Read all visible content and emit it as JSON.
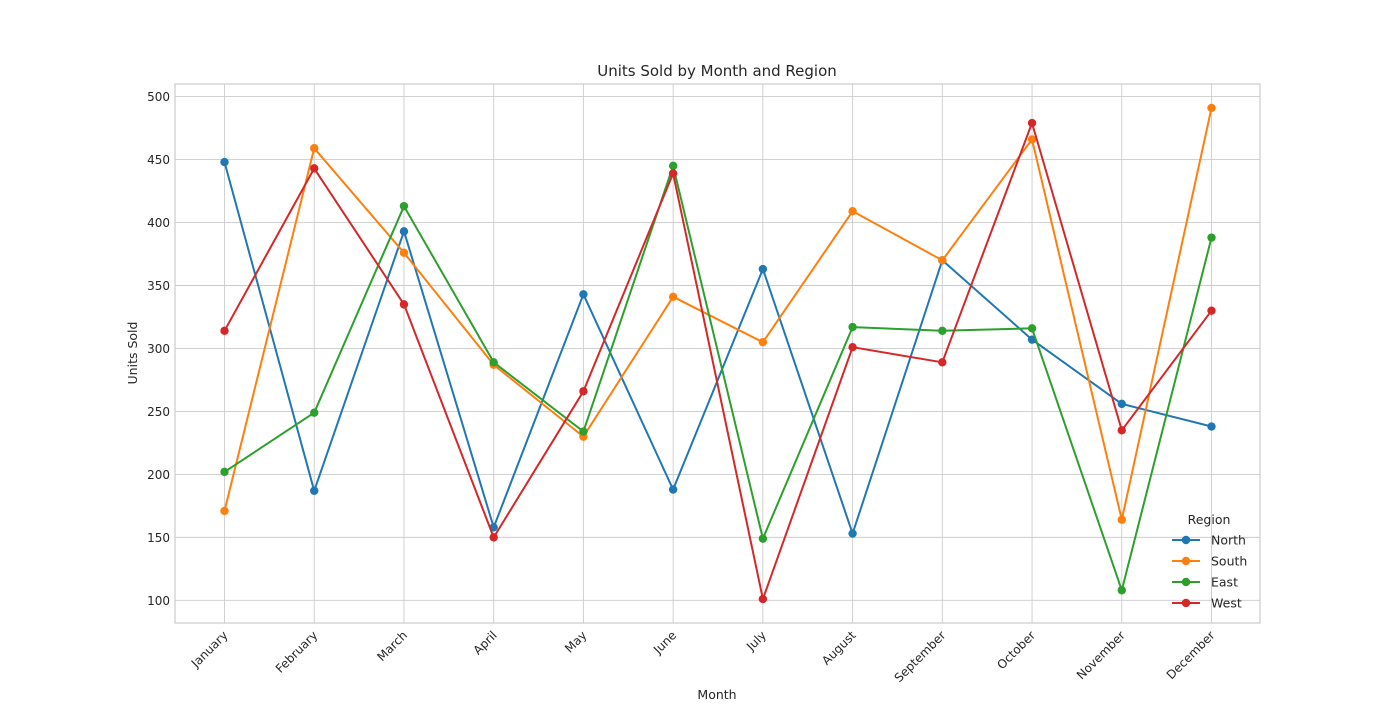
{
  "chart_data": {
    "type": "line",
    "title": "Units Sold by Month and Region",
    "xlabel": "Month",
    "ylabel": "Units Sold",
    "categories": [
      "January",
      "February",
      "March",
      "April",
      "May",
      "June",
      "July",
      "August",
      "September",
      "October",
      "November",
      "December"
    ],
    "ylim": [
      82,
      510
    ],
    "yticks": [
      100,
      150,
      200,
      250,
      300,
      350,
      400,
      450,
      500
    ],
    "grid": true,
    "legend": {
      "title": "Region",
      "placement": "bottom-right"
    },
    "series": [
      {
        "name": "North",
        "color": "#1f77b4",
        "values": [
          448,
          187,
          393,
          158,
          343,
          188,
          363,
          153,
          370,
          307,
          256,
          238
        ]
      },
      {
        "name": "South",
        "color": "#ff7f0e",
        "values": [
          171,
          459,
          376,
          287,
          230,
          341,
          305,
          409,
          370,
          466,
          164,
          491
        ]
      },
      {
        "name": "East",
        "color": "#2ca02c",
        "values": [
          202,
          249,
          413,
          289,
          234,
          445,
          149,
          317,
          314,
          316,
          108,
          388
        ]
      },
      {
        "name": "West",
        "color": "#d62728",
        "values": [
          314,
          443,
          335,
          150,
          266,
          439,
          101,
          301,
          289,
          479,
          235,
          330
        ]
      }
    ]
  }
}
